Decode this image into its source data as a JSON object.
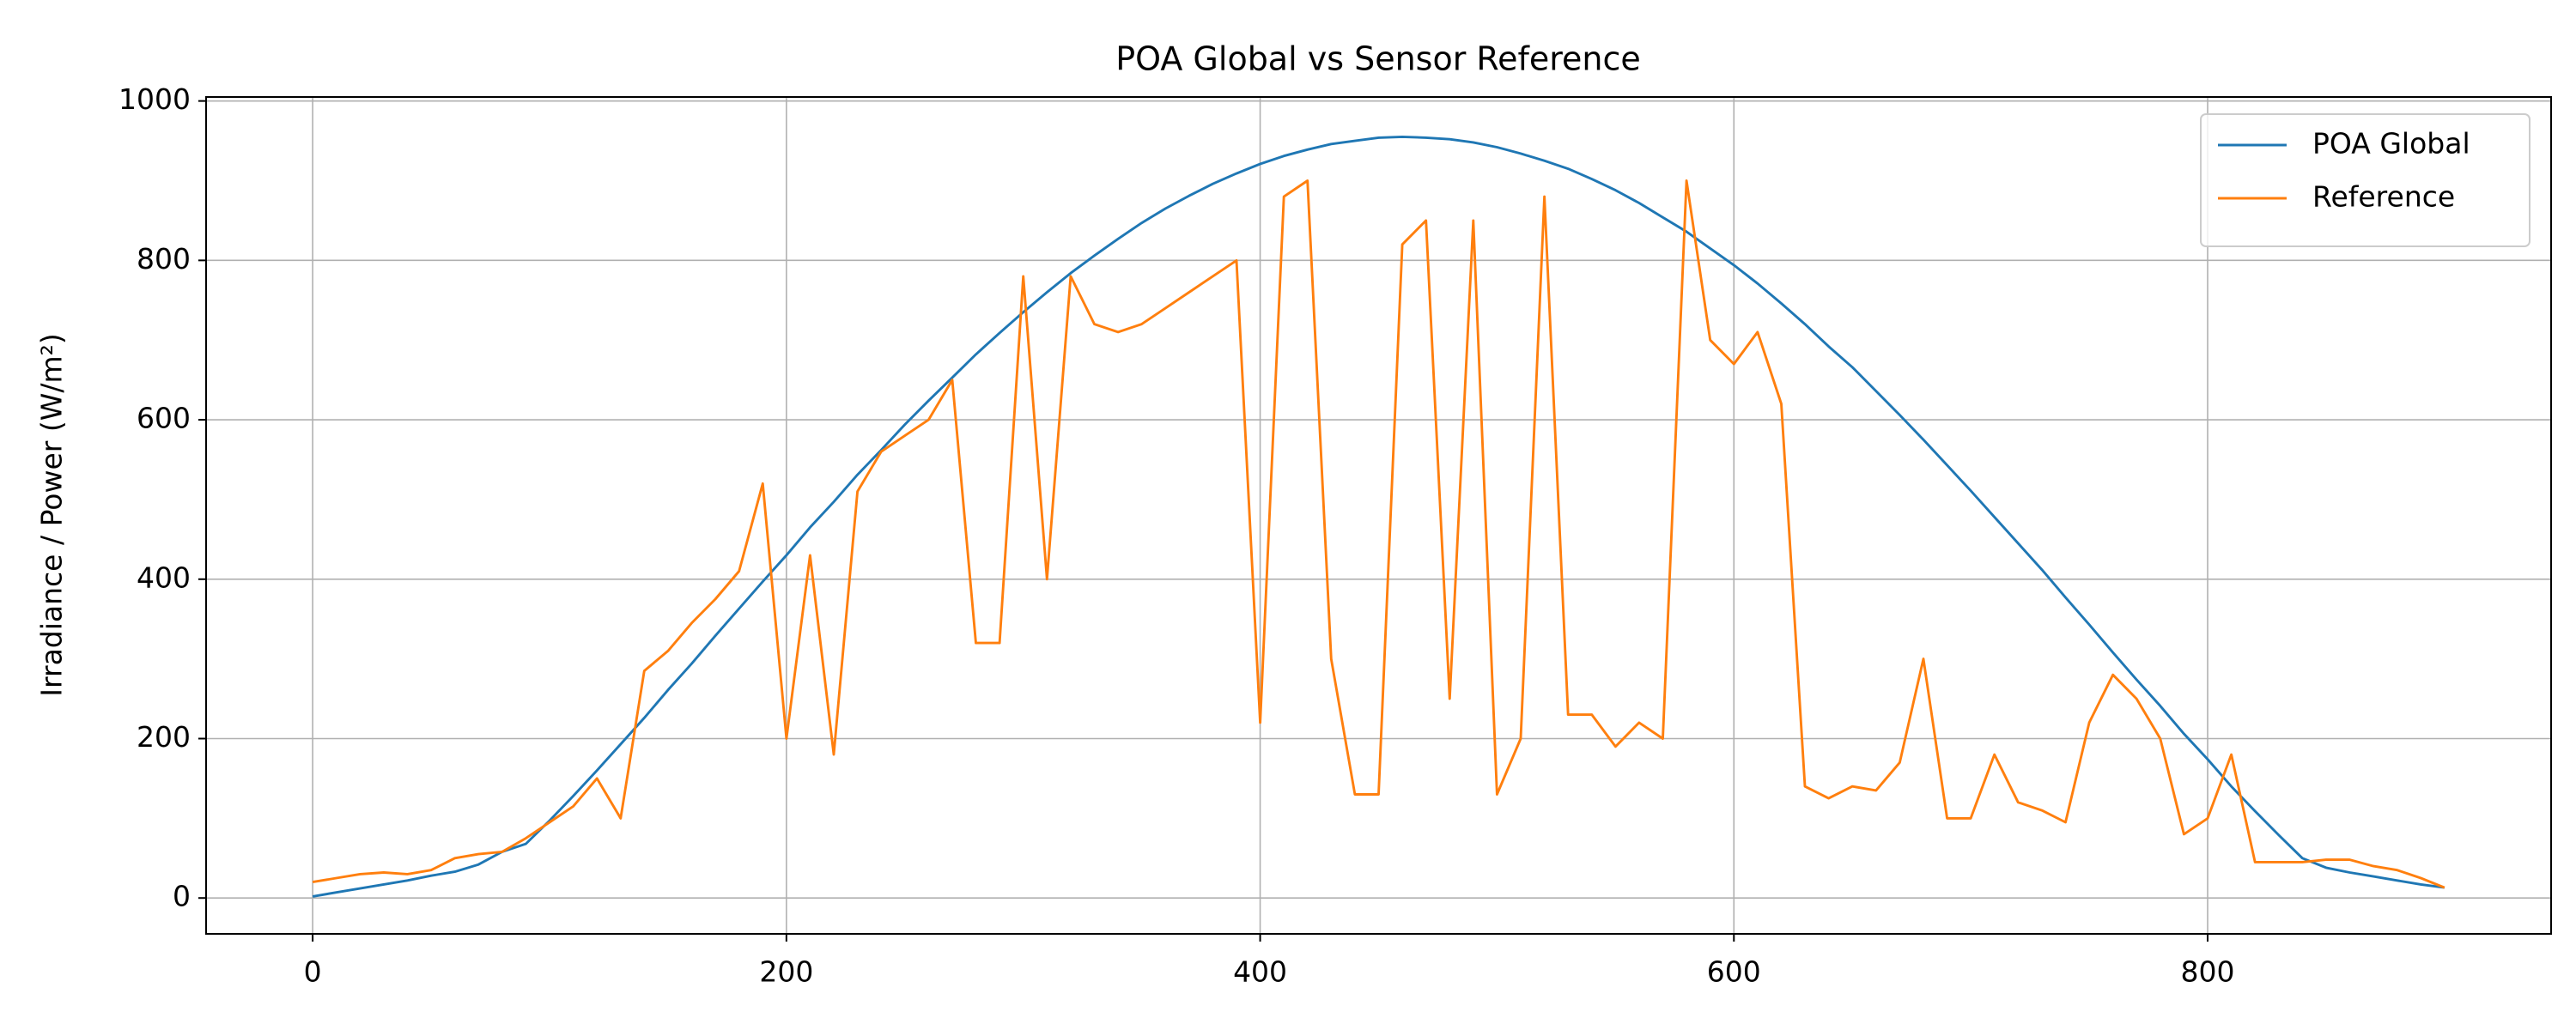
{
  "chart_data": {
    "type": "line",
    "title": "POA Global vs Sensor Reference",
    "y_label": "Irradiance / Power (W/m²)",
    "x": [
      0,
      10,
      20,
      30,
      40,
      50,
      60,
      70,
      80,
      90,
      100,
      110,
      120,
      130,
      140,
      150,
      160,
      170,
      180,
      190,
      200,
      210,
      220,
      230,
      240,
      250,
      260,
      270,
      280,
      290,
      300,
      310,
      320,
      330,
      340,
      350,
      360,
      370,
      380,
      390,
      400,
      410,
      420,
      430,
      440,
      450,
      460,
      470,
      480,
      490,
      500,
      510,
      520,
      530,
      540,
      550,
      560,
      570,
      580,
      590,
      600,
      610,
      620,
      630,
      640,
      650,
      660,
      670,
      680,
      690,
      700,
      710,
      720,
      730,
      740,
      750,
      760,
      770,
      780,
      790,
      800,
      810,
      820,
      830,
      840,
      850,
      860,
      870,
      880,
      890,
      900
    ],
    "series": [
      {
        "name": "POA Global",
        "color": "#1f77b4",
        "values": [
          2,
          7,
          12,
          17,
          22,
          28,
          33,
          42,
          58,
          68,
          97,
          128,
          160,
          193,
          226,
          261,
          294,
          329,
          363,
          397,
          430,
          465,
          497,
          531,
          562,
          594,
          624,
          653,
          682,
          709,
          735,
          760,
          784,
          806,
          827,
          847,
          865,
          881,
          896,
          909,
          921,
          931,
          939,
          946,
          950,
          954,
          955,
          954,
          952,
          948,
          942,
          934,
          925,
          915,
          902,
          888,
          872,
          854,
          836,
          815,
          794,
          771,
          746,
          720,
          692,
          666,
          636,
          606,
          575,
          543,
          511,
          478,
          445,
          412,
          377,
          343,
          308,
          274,
          241,
          206,
          174,
          140,
          109,
          79,
          50,
          38,
          32,
          27,
          22,
          17,
          13
        ]
      },
      {
        "name": "Reference",
        "color": "#ff7f0e",
        "values": [
          20,
          25,
          30,
          32,
          30,
          35,
          50,
          55,
          58,
          75,
          95,
          115,
          150,
          100,
          285,
          310,
          345,
          375,
          410,
          520,
          200,
          430,
          180,
          510,
          560,
          580,
          600,
          650,
          320,
          320,
          780,
          400,
          780,
          720,
          710,
          720,
          740,
          760,
          780,
          800,
          220,
          880,
          900,
          300,
          130,
          130,
          820,
          850,
          250,
          850,
          130,
          200,
          880,
          230,
          230,
          190,
          220,
          200,
          900,
          700,
          670,
          710,
          620,
          140,
          125,
          140,
          135,
          170,
          300,
          100,
          100,
          180,
          120,
          110,
          95,
          220,
          280,
          250,
          200,
          80,
          100,
          180,
          45,
          45,
          45,
          48,
          48,
          40,
          35,
          25,
          13
        ]
      }
    ],
    "xlim": [
      -45,
      945
    ],
    "xticks": [
      0,
      200,
      400,
      600,
      800
    ],
    "ylim": [
      -45,
      1005
    ],
    "yticks": [
      0,
      200,
      400,
      600,
      800,
      1000
    ],
    "grid": true,
    "legend": "upper right"
  }
}
